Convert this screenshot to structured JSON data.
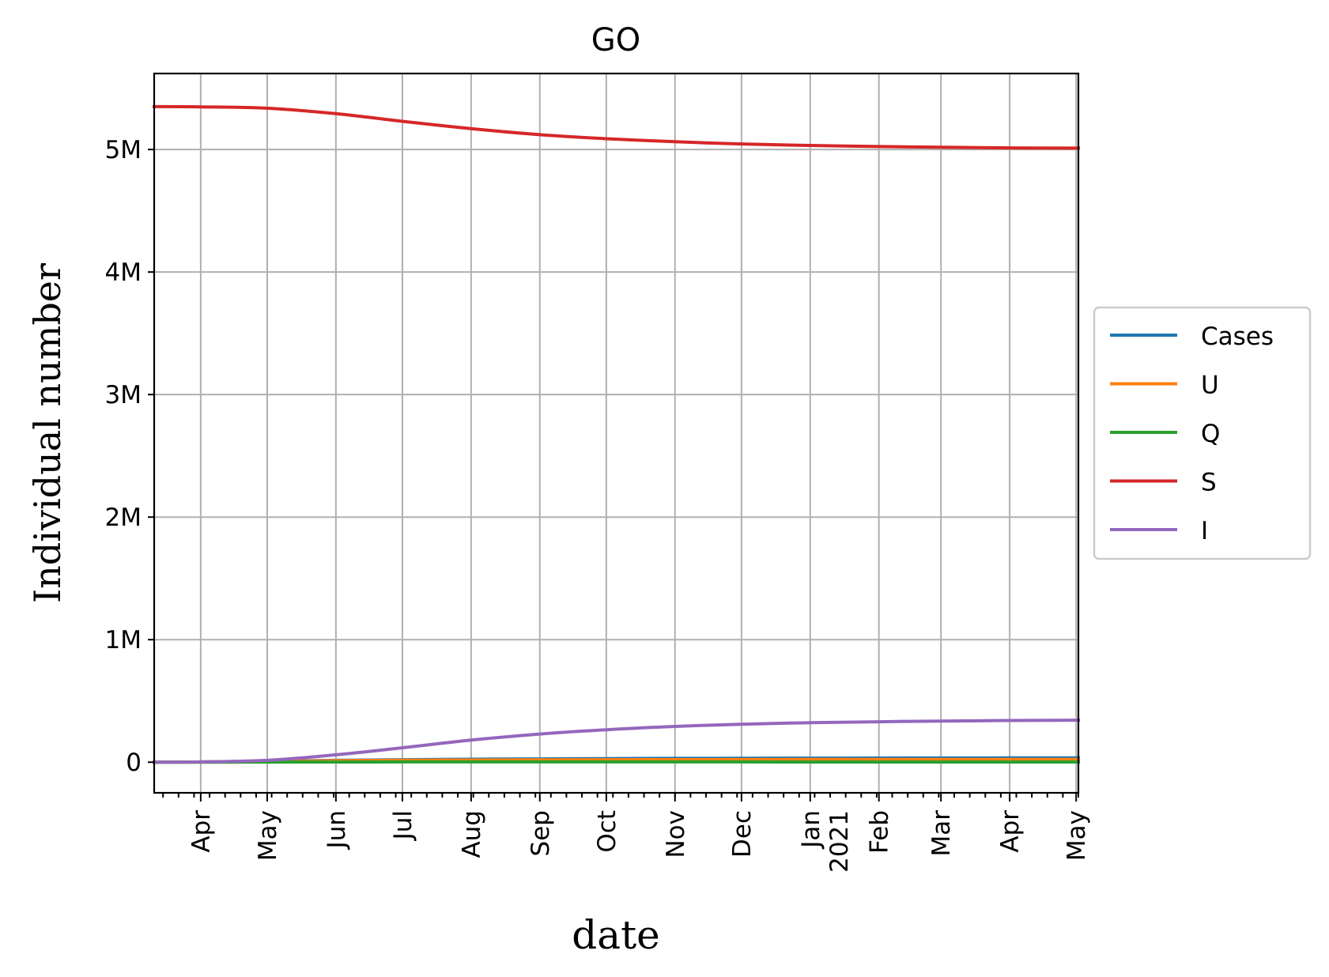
{
  "chart_data": {
    "type": "line",
    "title": "GO",
    "xlabel": "date",
    "ylabel": "Individual number",
    "xlim": [
      "2020-03-11",
      "2021-05-02"
    ],
    "ylim": [
      -250000,
      5620000
    ],
    "grid": true,
    "legend_position": "outside-right",
    "y_ticks": [
      {
        "value": 0,
        "label": "0"
      },
      {
        "value": 1000000,
        "label": "1M"
      },
      {
        "value": 2000000,
        "label": "2M"
      },
      {
        "value": 3000000,
        "label": "3M"
      },
      {
        "value": 4000000,
        "label": "4M"
      },
      {
        "value": 5000000,
        "label": "5M"
      }
    ],
    "x_ticks": [
      {
        "date": "2020-04-01",
        "label": "Apr"
      },
      {
        "date": "2020-05-01",
        "label": "May"
      },
      {
        "date": "2020-06-01",
        "label": "Jun"
      },
      {
        "date": "2020-07-01",
        "label": "Jul"
      },
      {
        "date": "2020-08-01",
        "label": "Aug"
      },
      {
        "date": "2020-09-01",
        "label": "Sep"
      },
      {
        "date": "2020-10-01",
        "label": "Oct"
      },
      {
        "date": "2020-11-01",
        "label": "Nov"
      },
      {
        "date": "2020-12-01",
        "label": "Dec"
      },
      {
        "date": "2021-01-01",
        "label": "Jan\n2021"
      },
      {
        "date": "2021-02-01",
        "label": "Feb"
      },
      {
        "date": "2021-03-01",
        "label": "Mar"
      },
      {
        "date": "2021-04-01",
        "label": "Apr"
      },
      {
        "date": "2021-05-01",
        "label": "May"
      }
    ],
    "x": [
      "2020-03-11",
      "2020-04-01",
      "2020-05-01",
      "2020-06-01",
      "2020-07-01",
      "2020-08-01",
      "2020-09-01",
      "2020-10-01",
      "2020-11-01",
      "2020-12-01",
      "2021-01-01",
      "2021-02-01",
      "2021-03-01",
      "2021-04-01",
      "2021-05-02"
    ],
    "series": [
      {
        "name": "Cases",
        "color": "#1f77b4",
        "values": [
          0,
          2000,
          8000,
          15000,
          20000,
          24000,
          27000,
          29000,
          31000,
          32000,
          33000,
          34000,
          34500,
          35000,
          35000
        ]
      },
      {
        "name": "U",
        "color": "#ff7f0e",
        "values": [
          0,
          1500,
          6000,
          12000,
          16000,
          18000,
          19500,
          20500,
          21000,
          21500,
          22000,
          22000,
          22000,
          22000,
          22000
        ]
      },
      {
        "name": "Q",
        "color": "#2ca02c",
        "values": [
          0,
          200,
          800,
          1500,
          2000,
          2200,
          2200,
          2100,
          2000,
          1900,
          1800,
          1700,
          1600,
          1500,
          1500
        ]
      },
      {
        "name": "S",
        "color": "#d62728",
        "values": [
          5350000,
          5348000,
          5337000,
          5292000,
          5230000,
          5170000,
          5121000,
          5088000,
          5063000,
          5045000,
          5033000,
          5024000,
          5018000,
          5013000,
          5011000
        ]
      },
      {
        "name": "I",
        "color": "#9467bd",
        "values": [
          0,
          2000,
          15000,
          60000,
          118000,
          180000,
          230000,
          265000,
          292000,
          310000,
          322000,
          330000,
          336000,
          340000,
          343000
        ]
      }
    ]
  }
}
